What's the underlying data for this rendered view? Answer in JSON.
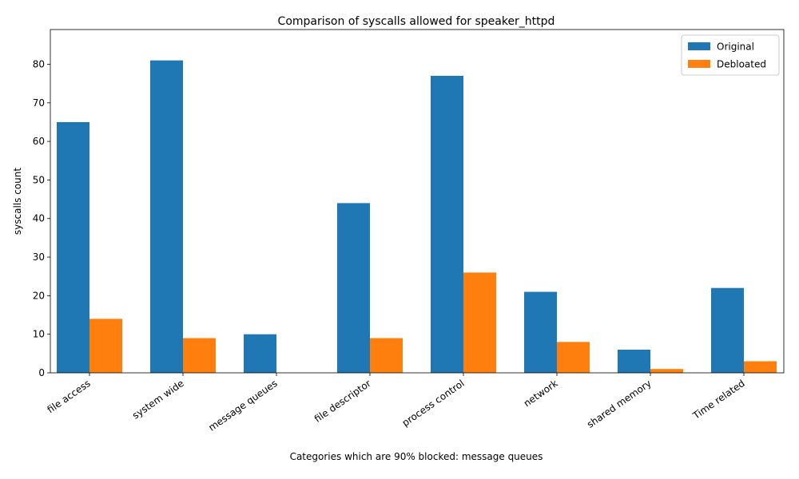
{
  "chart_data": {
    "type": "bar",
    "title": "Comparison of syscalls allowed for speaker_httpd",
    "xlabel": "Categories which are 90% blocked: message queues",
    "ylabel": "syscalls count",
    "categories": [
      "file access",
      "system wide",
      "message queues",
      "file descriptor",
      "process control",
      "network",
      "shared memory",
      "Time related"
    ],
    "series": [
      {
        "name": "Original",
        "color": "#1f77b4",
        "values": [
          65,
          81,
          10,
          44,
          77,
          21,
          6,
          22
        ]
      },
      {
        "name": "Debloated",
        "color": "#ff7f0e",
        "values": [
          14,
          9,
          0,
          9,
          26,
          8,
          1,
          3
        ]
      }
    ],
    "yticks": [
      0,
      10,
      20,
      30,
      40,
      50,
      60,
      70,
      80
    ],
    "ylim": [
      0,
      89
    ],
    "grid": false,
    "legend": "top-right"
  }
}
